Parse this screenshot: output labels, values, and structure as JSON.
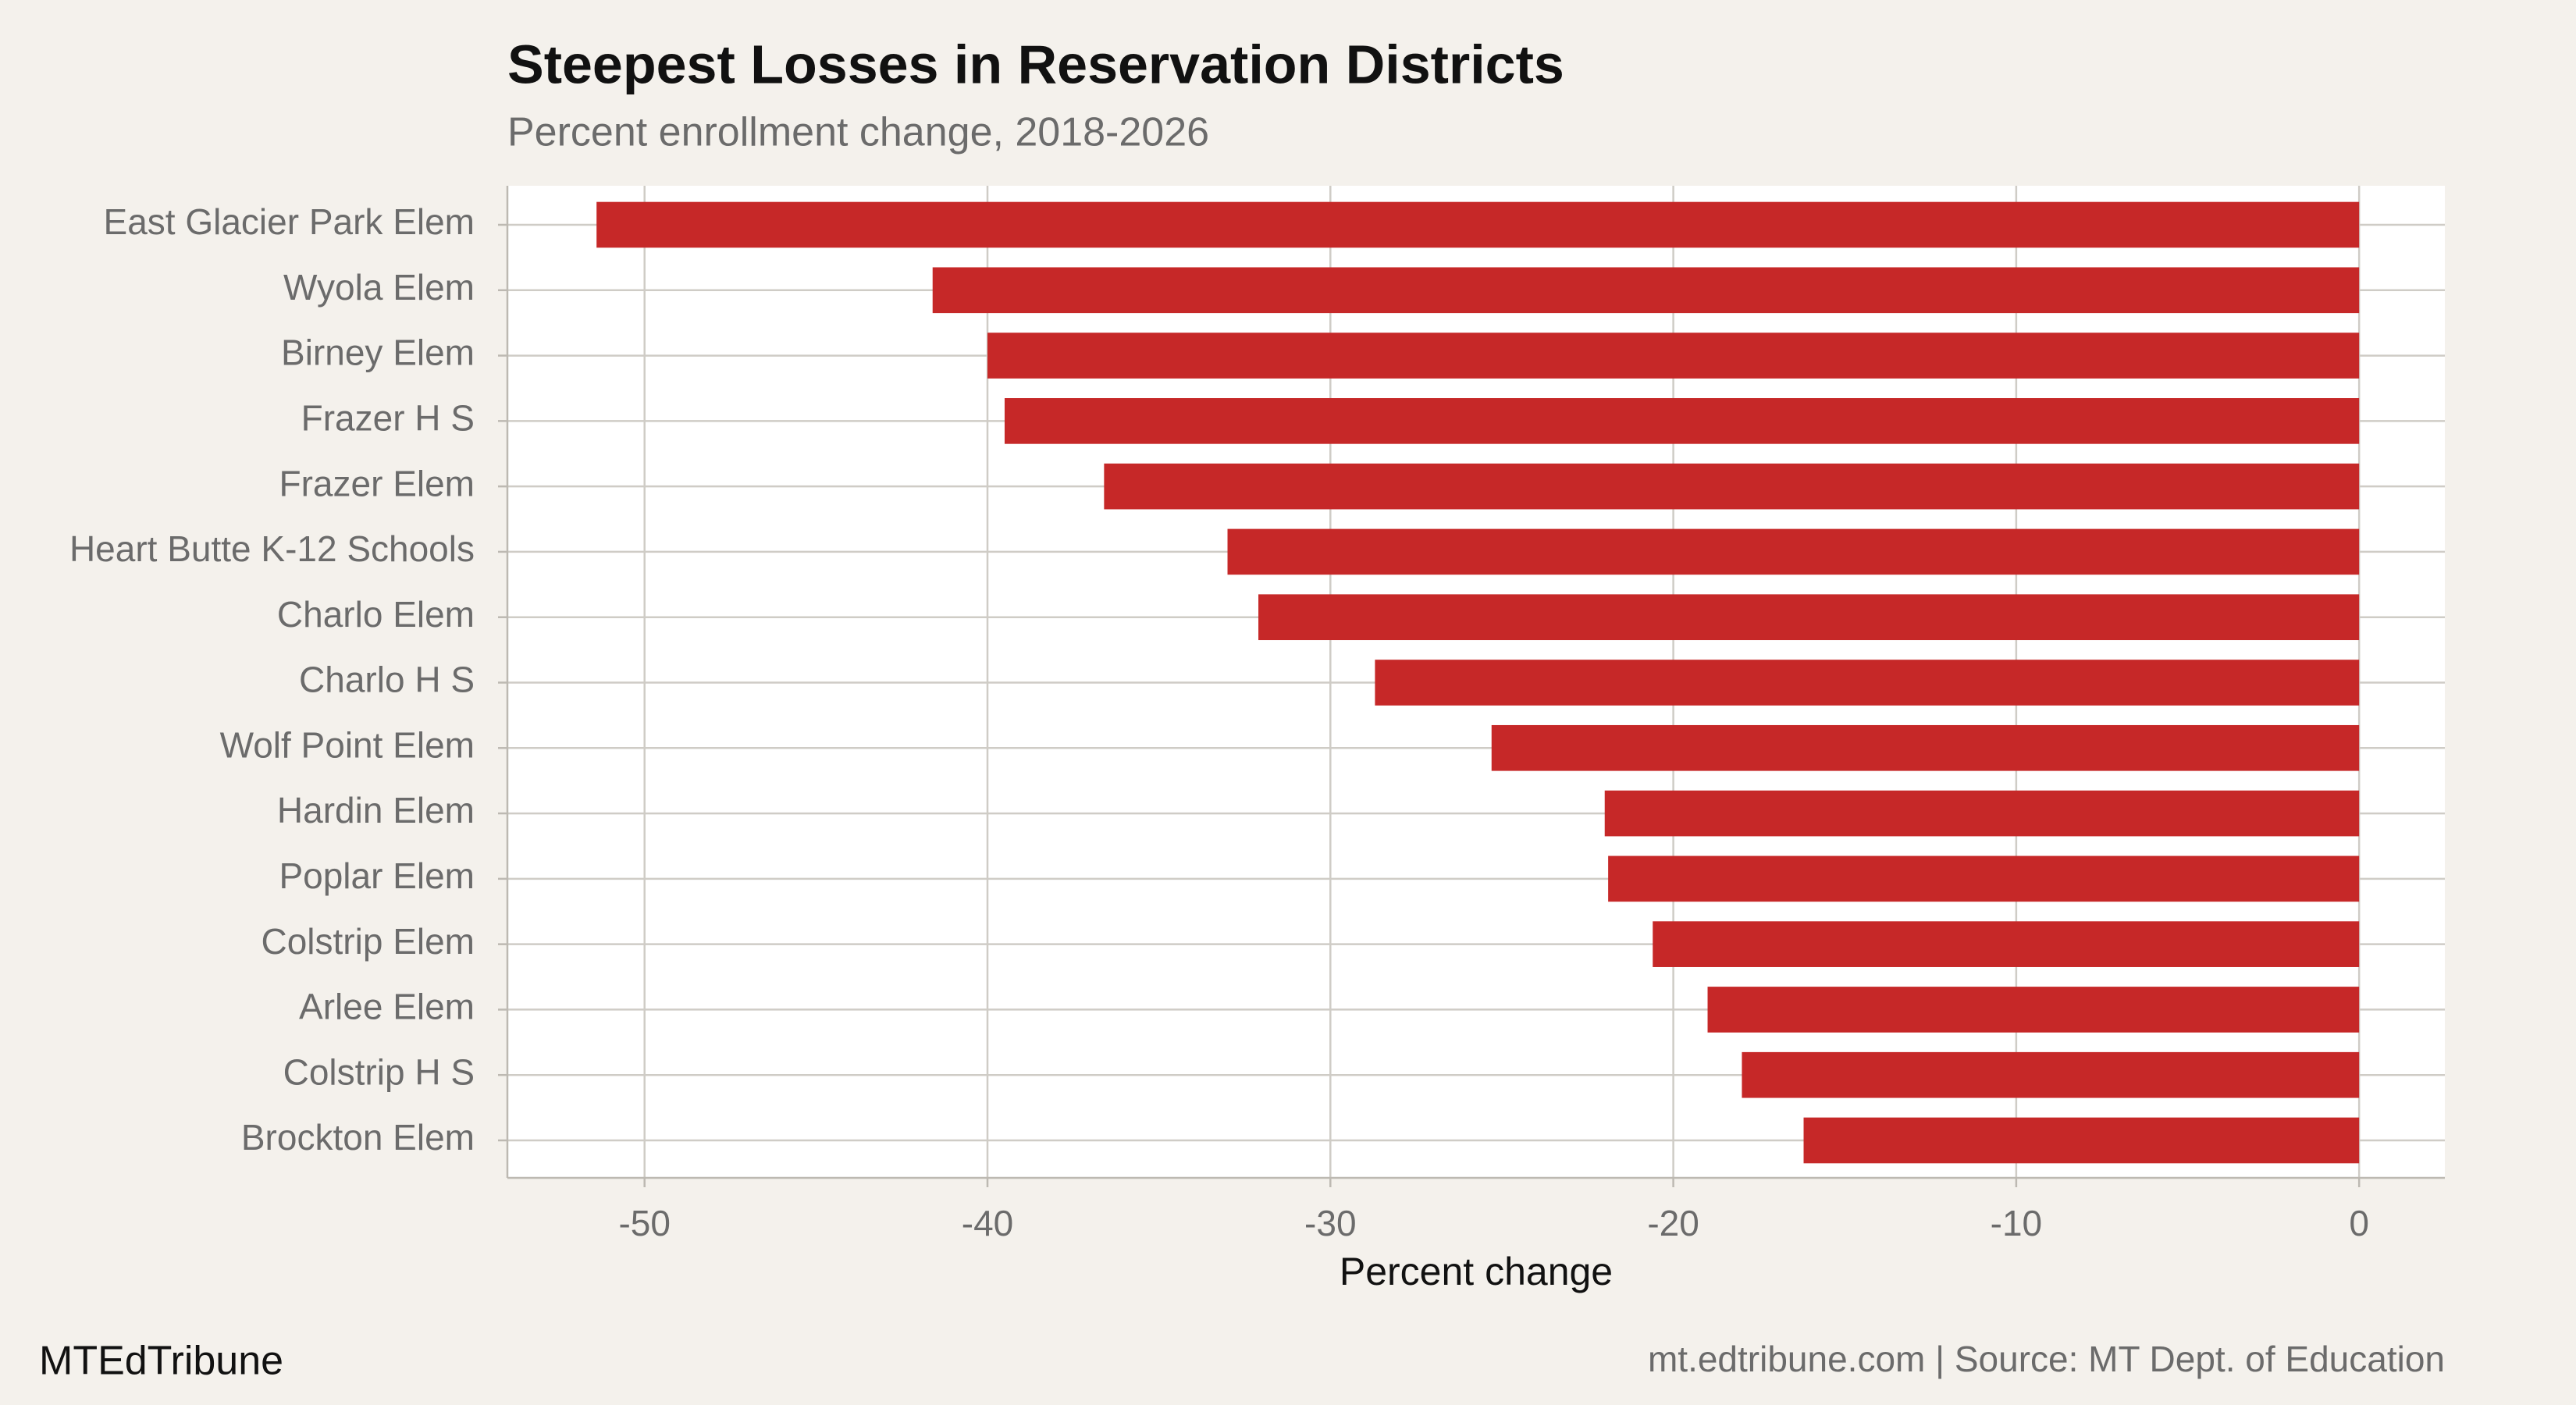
{
  "chart_data": {
    "type": "bar",
    "title": "Steepest Losses in Reservation Districts",
    "subtitle": "Percent enrollment change, 2018-2026",
    "x_label": "Percent change",
    "categories": [
      "East Glacier Park Elem",
      "Wyola Elem",
      "Birney Elem",
      "Frazer H S",
      "Frazer Elem",
      "Heart Butte K-12 Schools",
      "Charlo Elem",
      "Charlo H S",
      "Wolf Point Elem",
      "Hardin Elem",
      "Poplar Elem",
      "Colstrip Elem",
      "Arlee Elem",
      "Colstrip H S",
      "Brockton Elem"
    ],
    "values": [
      -51.4,
      -41.6,
      -40.0,
      -39.5,
      -36.6,
      -33.0,
      -32.1,
      -28.7,
      -25.3,
      -22.0,
      -21.9,
      -20.6,
      -19.0,
      -18.0,
      -16.2
    ],
    "color": "#c62828",
    "xlim": [
      -54,
      2.5
    ],
    "xticks": [
      -50,
      -40,
      -30,
      -20,
      -10,
      0
    ],
    "grid": true,
    "footer_left": "MTEdTribune",
    "footer_right": "mt.edtribune.com | Source: MT Dept. of Education"
  }
}
